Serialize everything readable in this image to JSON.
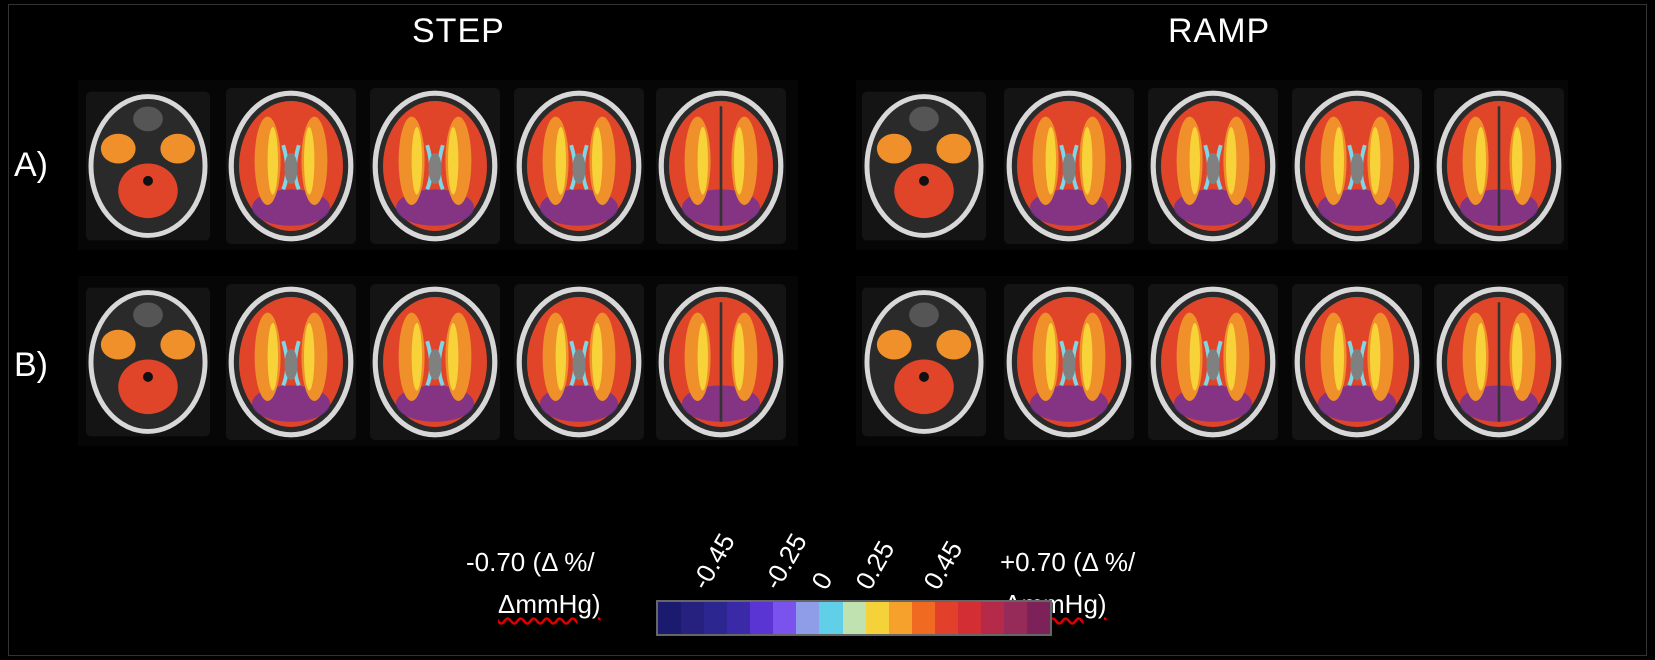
{
  "titles": {
    "left": "STEP",
    "right": "RAMP"
  },
  "rows": {
    "a": "A)",
    "b": "B)"
  },
  "colorbar": {
    "min_label_1": "-0.70 (Δ %/",
    "min_label_2": "ΔmmHg)",
    "max_label_1": "+0.70 (Δ %/",
    "max_label_2": "ΔmmHg)",
    "ticks": [
      "-0.45",
      "-0.25",
      "0",
      "0.25",
      "0.45"
    ],
    "colors": [
      "#1a1a6e",
      "#26207e",
      "#2c2690",
      "#3a2aa8",
      "#5b35d4",
      "#7a52ee",
      "#8f9ce8",
      "#5fd0e8",
      "#bfe2b0",
      "#f5d23a",
      "#f6a12c",
      "#f06a22",
      "#e2402a",
      "#d22e34",
      "#b52a48",
      "#962a58",
      "#7c2258"
    ]
  },
  "colors": {
    "skull": "#d8d8d8",
    "white_matter": "#f7d238",
    "orange": "#f0902a",
    "red": "#e0452a",
    "purple": "#6d2f9a",
    "cyan": "#7fd6e6",
    "ventricle": "#808080"
  }
}
